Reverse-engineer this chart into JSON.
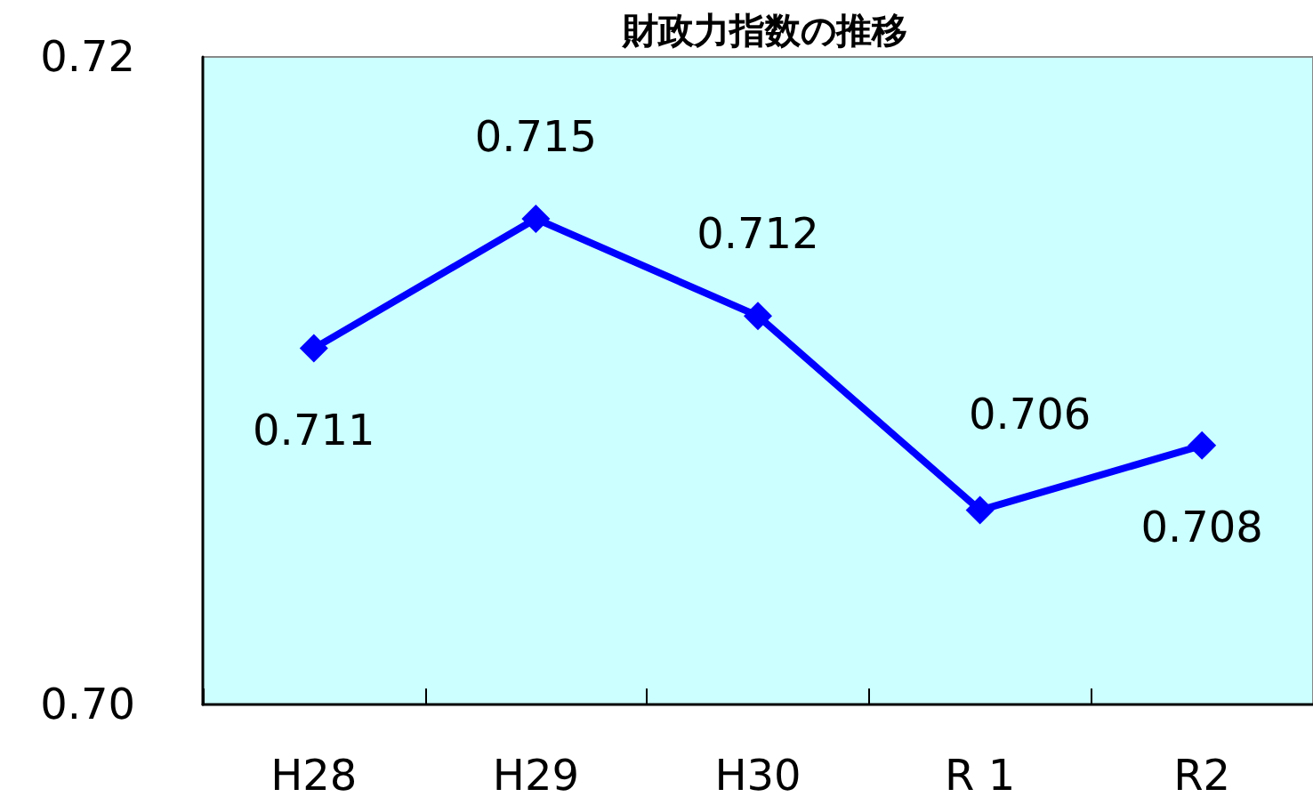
{
  "chart_data": {
    "type": "line",
    "title": "財政力指数の推移",
    "categories": [
      "H28",
      "H29",
      "H30",
      "R 1",
      "R2"
    ],
    "series": [
      {
        "color": "#0000ff",
        "values": [
          0.711,
          0.715,
          0.712,
          0.706,
          0.708
        ]
      }
    ],
    "ylim": [
      0.7,
      0.72
    ],
    "yticks": [
      {
        "value": 0.7,
        "label": "0.70"
      },
      0.72
    ],
    "grid": false,
    "marker": "diamond",
    "line_style": "solid",
    "data_labels": true
  }
}
